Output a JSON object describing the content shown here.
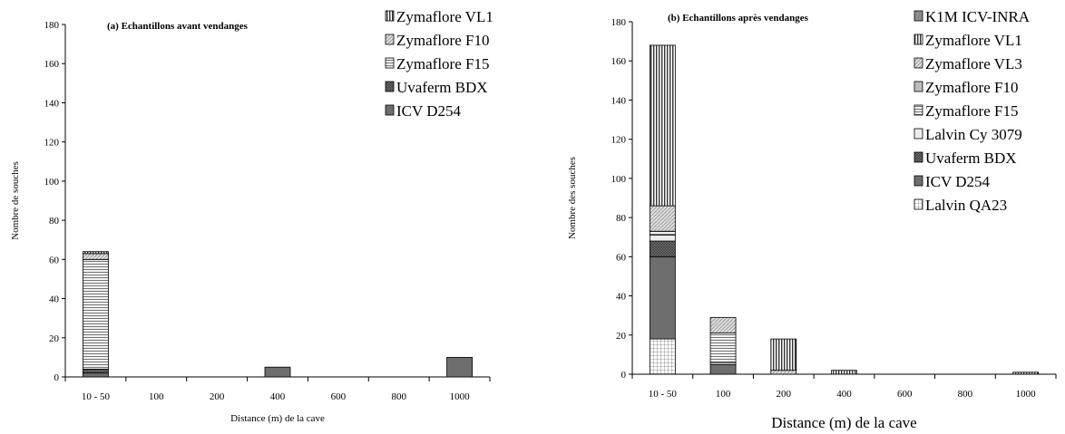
{
  "chart_data": [
    {
      "type": "bar",
      "stacked": true,
      "title": "(a) Echantillons avant vendanges",
      "xlabel": "Distance (m) de la cave",
      "ylabel": "Nombre de souches",
      "ylim": [
        0,
        180
      ],
      "yticks": [
        "0",
        "20",
        "40",
        "60",
        "80",
        "100",
        "120",
        "140",
        "160",
        "180"
      ],
      "categories": [
        "10 - 50",
        "100",
        "200",
        "400",
        "600",
        "800",
        "1000"
      ],
      "legend_position": "top-right",
      "series": [
        {
          "name": "ICV D254",
          "pattern": "solid-dark",
          "values": [
            2,
            0,
            0,
            5,
            0,
            0,
            10
          ]
        },
        {
          "name": "Uvaferm BDX",
          "pattern": "cross-dark",
          "values": [
            2,
            0,
            0,
            0,
            0,
            0,
            0
          ]
        },
        {
          "name": "Zymaflore F15",
          "pattern": "hlines",
          "values": [
            56,
            0,
            0,
            0,
            0,
            0,
            0
          ]
        },
        {
          "name": "Zymaflore F10",
          "pattern": "diag-light",
          "values": [
            3,
            0,
            0,
            0,
            0,
            0,
            0
          ]
        },
        {
          "name": "Zymaflore VL1",
          "pattern": "vlines",
          "values": [
            1,
            0,
            0,
            0,
            0,
            0,
            0
          ]
        }
      ],
      "legend_order": [
        "Zymaflore VL1",
        "Zymaflore F10",
        "Zymaflore F15",
        "Uvaferm BDX",
        "ICV D254"
      ]
    },
    {
      "type": "bar",
      "stacked": true,
      "title": "(b) Echantillons après vendanges",
      "xlabel": "Distance (m) de la cave",
      "ylabel": "Nombre des souches",
      "ylim": [
        0,
        180
      ],
      "yticks": [
        "0",
        "20",
        "40",
        "60",
        "80",
        "100",
        "120",
        "140",
        "160",
        "180"
      ],
      "categories": [
        "10 - 50",
        "100",
        "200",
        "400",
        "600",
        "800",
        "1000"
      ],
      "legend_position": "top-right",
      "series": [
        {
          "name": "Lalvin QA23",
          "pattern": "grid",
          "values": [
            18,
            0,
            0,
            0,
            0,
            0,
            0
          ]
        },
        {
          "name": "ICV D254",
          "pattern": "solid-dark",
          "values": [
            42,
            5,
            0,
            0,
            0,
            0,
            0
          ]
        },
        {
          "name": "Uvaferm BDX",
          "pattern": "cross-dark",
          "values": [
            8,
            0,
            0,
            0,
            0,
            0,
            0
          ]
        },
        {
          "name": "Lalvin Cy 3079",
          "pattern": "light",
          "values": [
            3,
            1,
            0,
            0,
            0,
            0,
            0
          ]
        },
        {
          "name": "Zymaflore F15",
          "pattern": "hlines",
          "values": [
            2,
            15,
            0,
            0,
            0,
            0,
            0
          ]
        },
        {
          "name": "Zymaflore F10",
          "pattern": "mid-gray",
          "values": [
            0,
            0,
            0,
            0,
            0,
            0,
            0
          ]
        },
        {
          "name": "Zymaflore VL3",
          "pattern": "diag-light",
          "values": [
            13,
            8,
            2,
            0,
            0,
            0,
            0
          ]
        },
        {
          "name": "Zymaflore VL1",
          "pattern": "vlines",
          "values": [
            82,
            0,
            16,
            2,
            0,
            0,
            1
          ]
        },
        {
          "name": "K1M ICV-INRA",
          "pattern": "dark-gray",
          "values": [
            0,
            0,
            0,
            0,
            0,
            0,
            0
          ]
        }
      ],
      "legend_order": [
        "K1M ICV-INRA",
        "Zymaflore VL1",
        "Zymaflore VL3",
        "Zymaflore F10",
        "Zymaflore F15",
        "Lalvin Cy 3079",
        "Uvaferm BDX",
        "ICV D254",
        "Lalvin QA23"
      ]
    }
  ]
}
